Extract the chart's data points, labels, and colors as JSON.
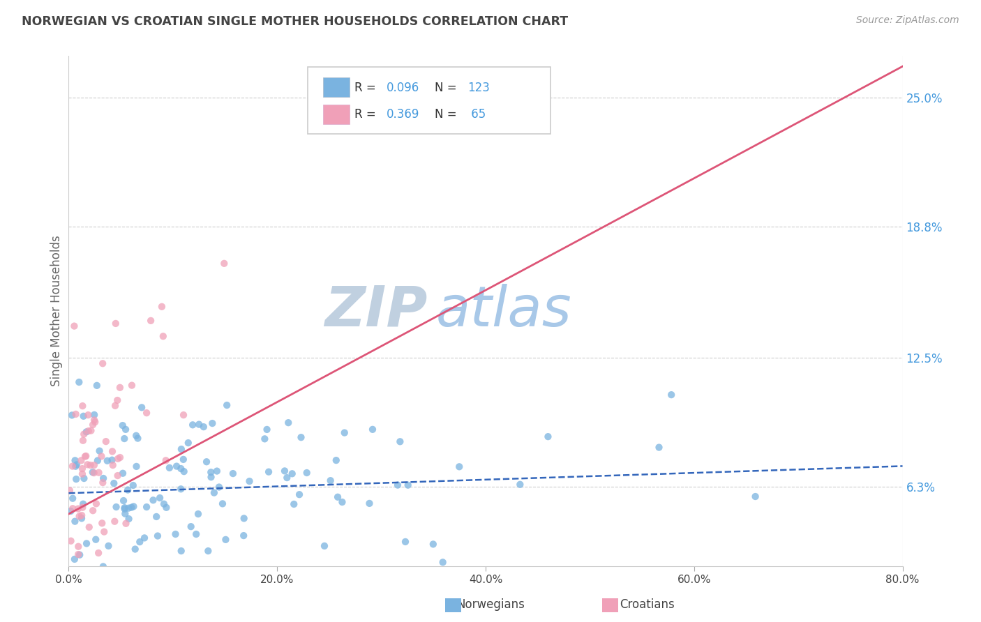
{
  "title": "NORWEGIAN VS CROATIAN SINGLE MOTHER HOUSEHOLDS CORRELATION CHART",
  "source": "Source: ZipAtlas.com",
  "ylabel": "Single Mother Households",
  "x_tick_labels": [
    "0.0%",
    "20.0%",
    "40.0%",
    "60.0%",
    "80.0%"
  ],
  "x_tick_positions": [
    0,
    20,
    40,
    60,
    80
  ],
  "y_tick_labels": [
    "6.3%",
    "12.5%",
    "18.8%",
    "25.0%"
  ],
  "y_tick_values": [
    6.3,
    12.5,
    18.8,
    25.0
  ],
  "x_min": 0.0,
  "x_max": 80.0,
  "y_min": 2.5,
  "y_max": 27.0,
  "norwegian_R": 0.096,
  "norwegian_N": 123,
  "croatian_R": 0.369,
  "croatian_N": 65,
  "color_norwegian": "#7ab3e0",
  "color_croatian": "#f0a0b8",
  "color_norwegian_line": "#3366bb",
  "color_croatian_line": "#dd5577",
  "color_legend_text": "#4499dd",
  "color_title": "#444444",
  "color_source": "#999999",
  "color_axis_label": "#666666",
  "color_grid": "#cccccc",
  "color_watermark_zip": "#c0d0e0",
  "color_watermark_atlas": "#a8c8e8",
  "watermark_zip": "ZIP",
  "watermark_atlas": "atlas",
  "background_color": "#ffffff",
  "nor_line_x": [
    0,
    80
  ],
  "nor_line_y": [
    6.0,
    7.3
  ],
  "cro_line_x": [
    0,
    80
  ],
  "cro_line_y": [
    5.0,
    26.5
  ]
}
